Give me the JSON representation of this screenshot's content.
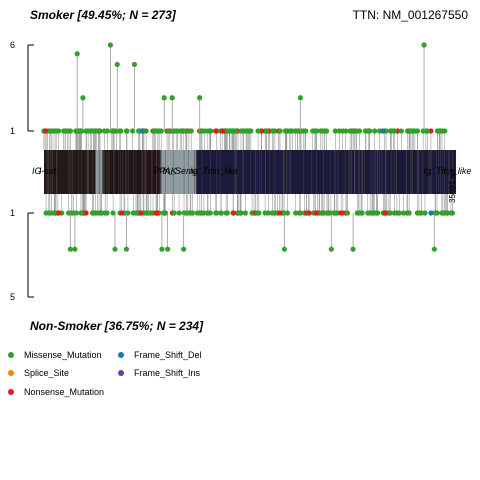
{
  "header": {
    "top_group": "Smoker [49.45%; N = 273]",
    "gene": "TTN: NM_001267550",
    "bottom_group": "Non-Smoker [36.75%; N = 234]"
  },
  "legend": [
    {
      "label": "Missense_Mutation",
      "color": "#33A02C"
    },
    {
      "label": "Frame_Shift_Del",
      "color": "#1F78B4"
    },
    {
      "label": "Splice_Site",
      "color": "#FF7F00"
    },
    {
      "label": "Frame_Shift_Ins",
      "color": "#6A3D9A"
    },
    {
      "label": "Nonsense_Mutation",
      "color": "#E31A1C"
    }
  ],
  "chart_data": {
    "type": "lollipop",
    "protein_length": 35991,
    "length_label": "35991 aa",
    "top_axis": {
      "ticks": [
        "6",
        "1"
      ],
      "max": 6
    },
    "bottom_axis": {
      "ticks": [
        "1",
        "5"
      ],
      "max": 5
    },
    "domain_labels": [
      {
        "label": "IG",
        "start": 0
      },
      {
        "label": "I-set",
        "start": 600
      },
      {
        "label": "PPAK",
        "start": 10600
      },
      {
        "label": "fn_Sema",
        "start": 11400
      },
      {
        "label": "Ig_Titin_like",
        "start": 13800
      },
      {
        "label": "Ig_Titin_like",
        "start": 34200
      }
    ],
    "domain_blocks": [
      {
        "start": 0,
        "end": 4500,
        "color": "#241818"
      },
      {
        "start": 4500,
        "end": 5100,
        "color": "#8E9EA3"
      },
      {
        "start": 5100,
        "end": 10200,
        "color": "#201416"
      },
      {
        "start": 10200,
        "end": 13300,
        "color": "#8E9EA3"
      },
      {
        "start": 13300,
        "end": 35991,
        "color": "#1A1A3C"
      }
    ],
    "top_mutations": [
      {
        "pos": 2900,
        "count": 5,
        "type": "Missense_Mutation"
      },
      {
        "pos": 3400,
        "count": 2,
        "type": "Missense_Mutation"
      },
      {
        "pos": 5800,
        "count": 6,
        "type": "Missense_Mutation"
      },
      {
        "pos": 6400,
        "count": 4,
        "type": "Missense_Mutation"
      },
      {
        "pos": 7900,
        "count": 4,
        "type": "Missense_Mutation"
      },
      {
        "pos": 10500,
        "count": 2,
        "type": "Missense_Mutation"
      },
      {
        "pos": 11200,
        "count": 2,
        "type": "Missense_Mutation"
      },
      {
        "pos": 13600,
        "count": 2,
        "type": "Missense_Mutation"
      },
      {
        "pos": 22400,
        "count": 2,
        "type": "Missense_Mutation"
      },
      {
        "pos": 33200,
        "count": 6,
        "type": "Missense_Mutation"
      },
      {
        "pos": 8600,
        "count": 1,
        "type": "Frame_Shift_Del"
      },
      {
        "pos": 15000,
        "count": 1,
        "type": "Nonsense_Mutation"
      },
      {
        "pos": 15600,
        "count": 1,
        "type": "Nonsense_Mutation"
      },
      {
        "pos": 29600,
        "count": 1,
        "type": "Frame_Shift_Del"
      }
    ],
    "bottom_mutations": [
      {
        "pos": 2300,
        "count": 2,
        "type": "Missense_Mutation"
      },
      {
        "pos": 2700,
        "count": 2,
        "type": "Missense_Mutation"
      },
      {
        "pos": 6200,
        "count": 2,
        "type": "Missense_Mutation"
      },
      {
        "pos": 7200,
        "count": 2,
        "type": "Missense_Mutation"
      },
      {
        "pos": 10300,
        "count": 2,
        "type": "Missense_Mutation"
      },
      {
        "pos": 10800,
        "count": 2,
        "type": "Missense_Mutation"
      },
      {
        "pos": 12200,
        "count": 2,
        "type": "Missense_Mutation"
      },
      {
        "pos": 21000,
        "count": 2,
        "type": "Missense_Mutation"
      },
      {
        "pos": 25100,
        "count": 2,
        "type": "Missense_Mutation"
      },
      {
        "pos": 27000,
        "count": 2,
        "type": "Missense_Mutation"
      },
      {
        "pos": 34100,
        "count": 2,
        "type": "Missense_Mutation"
      },
      {
        "pos": 1300,
        "count": 1,
        "type": "Nonsense_Mutation"
      },
      {
        "pos": 23800,
        "count": 1,
        "type": "Nonsense_Mutation"
      },
      {
        "pos": 29800,
        "count": 1,
        "type": "Nonsense_Mutation"
      },
      {
        "pos": 33800,
        "count": 1,
        "type": "Frame_Shift_Del"
      }
    ]
  }
}
